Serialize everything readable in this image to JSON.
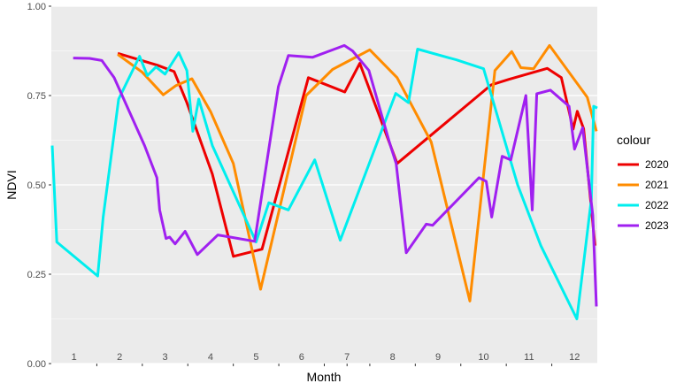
{
  "chart_data": {
    "type": "line",
    "xlabel": "Month",
    "ylabel": "NDVI",
    "xlim": [
      0.5,
      12.5
    ],
    "ylim": [
      0,
      1
    ],
    "y_ticks": [
      "0.00",
      "0.25",
      "0.50",
      "0.75",
      "1.00"
    ],
    "month_labels": [
      "1",
      "2",
      "3",
      "4",
      "5",
      "6",
      "7",
      "8",
      "9",
      "10",
      "11",
      "12"
    ],
    "grid": true,
    "legend_title": "colour",
    "legend_position": "right",
    "series": [
      {
        "name": "2020",
        "color": "#ee0000",
        "points": [
          [
            1.96,
            0.868
          ],
          [
            2.83,
            0.835
          ],
          [
            3.2,
            0.817
          ],
          [
            3.48,
            0.73
          ],
          [
            4.04,
            0.53
          ],
          [
            4.5,
            0.3
          ],
          [
            5.13,
            0.32
          ],
          [
            6.15,
            0.8
          ],
          [
            6.95,
            0.76
          ],
          [
            7.28,
            0.84
          ],
          [
            8.1,
            0.56
          ],
          [
            10.17,
            0.78
          ],
          [
            10.55,
            0.795
          ],
          [
            11.4,
            0.826
          ],
          [
            11.71,
            0.8
          ],
          [
            11.97,
            0.656
          ],
          [
            12.06,
            0.706
          ],
          [
            12.2,
            0.657
          ],
          [
            12.45,
            0.33
          ]
        ]
      },
      {
        "name": "2021",
        "color": "#ff8c00",
        "points": [
          [
            1.96,
            0.865
          ],
          [
            2.5,
            0.815
          ],
          [
            2.96,
            0.752
          ],
          [
            3.24,
            0.778
          ],
          [
            3.59,
            0.797
          ],
          [
            4.0,
            0.705
          ],
          [
            4.5,
            0.56
          ],
          [
            5.1,
            0.208
          ],
          [
            6.1,
            0.75
          ],
          [
            6.68,
            0.823
          ],
          [
            7.5,
            0.878
          ],
          [
            8.1,
            0.8
          ],
          [
            8.85,
            0.62
          ],
          [
            9.7,
            0.175
          ],
          [
            10.25,
            0.82
          ],
          [
            10.62,
            0.873
          ],
          [
            10.82,
            0.828
          ],
          [
            11.1,
            0.825
          ],
          [
            11.45,
            0.89
          ],
          [
            12.28,
            0.745
          ],
          [
            12.48,
            0.65
          ]
        ]
      },
      {
        "name": "2022",
        "color": "#00eeee",
        "points": [
          [
            0.52,
            0.61
          ],
          [
            0.62,
            0.34
          ],
          [
            1.52,
            0.245
          ],
          [
            1.64,
            0.41
          ],
          [
            1.98,
            0.74
          ],
          [
            2.44,
            0.86
          ],
          [
            2.61,
            0.806
          ],
          [
            2.8,
            0.83
          ],
          [
            3.0,
            0.81
          ],
          [
            3.3,
            0.87
          ],
          [
            3.48,
            0.82
          ],
          [
            3.61,
            0.65
          ],
          [
            3.74,
            0.74
          ],
          [
            4.04,
            0.61
          ],
          [
            5.0,
            0.34
          ],
          [
            5.28,
            0.45
          ],
          [
            5.71,
            0.43
          ],
          [
            6.29,
            0.57
          ],
          [
            6.85,
            0.345
          ],
          [
            8.07,
            0.756
          ],
          [
            8.35,
            0.73
          ],
          [
            8.55,
            0.88
          ],
          [
            9.4,
            0.85
          ],
          [
            10.0,
            0.825
          ],
          [
            10.75,
            0.5
          ],
          [
            11.26,
            0.33
          ],
          [
            12.05,
            0.125
          ],
          [
            12.37,
            0.46
          ],
          [
            12.42,
            0.72
          ],
          [
            12.5,
            0.715
          ]
        ]
      },
      {
        "name": "2023",
        "color": "#a020f0",
        "points": [
          [
            0.98,
            0.855
          ],
          [
            1.34,
            0.854
          ],
          [
            1.61,
            0.848
          ],
          [
            1.88,
            0.8
          ],
          [
            2.55,
            0.61
          ],
          [
            2.82,
            0.52
          ],
          [
            2.88,
            0.43
          ],
          [
            3.02,
            0.35
          ],
          [
            3.1,
            0.354
          ],
          [
            3.22,
            0.335
          ],
          [
            3.44,
            0.37
          ],
          [
            3.71,
            0.305
          ],
          [
            4.16,
            0.36
          ],
          [
            4.97,
            0.342
          ],
          [
            5.49,
            0.775
          ],
          [
            5.71,
            0.862
          ],
          [
            6.24,
            0.857
          ],
          [
            6.94,
            0.89
          ],
          [
            7.12,
            0.875
          ],
          [
            7.48,
            0.82
          ],
          [
            7.93,
            0.62
          ],
          [
            8.08,
            0.56
          ],
          [
            8.3,
            0.31
          ],
          [
            8.74,
            0.39
          ],
          [
            8.88,
            0.387
          ],
          [
            9.9,
            0.52
          ],
          [
            10.06,
            0.51
          ],
          [
            10.18,
            0.41
          ],
          [
            10.41,
            0.58
          ],
          [
            10.6,
            0.57
          ],
          [
            10.93,
            0.75
          ],
          [
            11.07,
            0.43
          ],
          [
            11.17,
            0.755
          ],
          [
            11.47,
            0.765
          ],
          [
            11.88,
            0.72
          ],
          [
            12.0,
            0.6
          ],
          [
            12.18,
            0.66
          ],
          [
            12.4,
            0.415
          ],
          [
            12.48,
            0.16
          ]
        ]
      }
    ]
  }
}
